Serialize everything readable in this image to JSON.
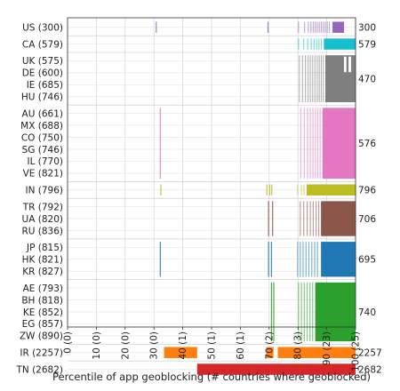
{
  "chart_data": {
    "type": "bar",
    "xlabel": "Percentile of app geoblocking (# countries where geoblocked)",
    "ylabel": "",
    "xlim": [
      0,
      100
    ],
    "x_ticks": [
      {
        "value": 0,
        "label": "0 (0)"
      },
      {
        "value": 10,
        "label": "10 (0)"
      },
      {
        "value": 20,
        "label": "20 (0)"
      },
      {
        "value": 30,
        "label": "30 (0)"
      },
      {
        "value": 40,
        "label": "40 (1)"
      },
      {
        "value": 50,
        "label": "50 (1)"
      },
      {
        "value": 60,
        "label": "60 (1)"
      },
      {
        "value": 70,
        "label": "70 (2)"
      },
      {
        "value": 80,
        "label": "80 (3)"
      },
      {
        "value": 90,
        "label": "90 (23)"
      },
      {
        "value": 100,
        "label": "100 (25)"
      }
    ],
    "grid": true,
    "groups": [
      {
        "rows": [
          "US (300)"
        ],
        "total": "300",
        "color": "#9467bd",
        "segments": [
          [
            92,
            96
          ]
        ],
        "ticks": [
          30.8,
          69.6,
          80.2,
          82.3,
          83.6,
          84.5,
          85.3,
          86.0,
          86.7,
          87.4,
          88.1,
          88.8,
          89.5,
          90.2,
          90.9
        ]
      },
      {
        "rows": [
          "CA (579)"
        ],
        "total": "579",
        "color": "#17becf",
        "segments": [
          [
            89,
            100
          ]
        ],
        "ticks": [
          80.2,
          82.0,
          83.4,
          84.6,
          85.6,
          86.5,
          87.3,
          88.1
        ]
      },
      {
        "rows": [
          "UK (575)",
          "DE (600)",
          "IE (685)",
          "HU (746)"
        ],
        "total": "470",
        "color": "#7f7f7f",
        "segments": [
          [
            89.5,
            100
          ]
        ],
        "ticks": [
          80.5,
          81.6,
          82.6,
          83.5,
          84.3,
          85.1,
          85.9,
          86.7,
          87.4,
          88.1,
          88.8
        ],
        "notches": [
          96.4,
          98.0
        ]
      },
      {
        "rows": [
          "AU (661)",
          "MX (688)",
          "CO (750)",
          "SG (746)",
          "IL (770)",
          "VE (821)"
        ],
        "total": "576",
        "color": "#e377c2",
        "segments": [
          [
            88.5,
            100
          ]
        ],
        "ticks": [
          32.2,
          81.0,
          82.2,
          83.3,
          84.3,
          85.2,
          86.1,
          86.9,
          87.7
        ]
      },
      {
        "rows": [
          "IN (796)"
        ],
        "total": "796",
        "color": "#bcbd22",
        "segments": [
          [
            83,
            100
          ]
        ],
        "ticks": [
          32.4,
          69.2,
          70.2,
          70.9,
          79.9,
          81.2,
          82.1
        ]
      },
      {
        "rows": [
          "TR (792)",
          "UA (820)",
          "RU (836)"
        ],
        "total": "706",
        "color": "#8c564b",
        "segments": [
          [
            88,
            100
          ]
        ],
        "ticks": [
          69.8,
          71.2,
          80.8,
          82.0,
          83.2,
          84.3,
          85.3,
          86.3,
          87.2
        ]
      },
      {
        "rows": [
          "JP (815)",
          "HK (821)",
          "KR (827)"
        ],
        "total": "695",
        "color": "#1f77b4",
        "segments": [
          [
            88,
            100
          ]
        ],
        "ticks": [
          32.2,
          69.8,
          70.8,
          79.9,
          80.8,
          81.8,
          82.8,
          83.8,
          84.8,
          85.8,
          86.8
        ]
      },
      {
        "rows": [
          "AE (793)",
          "BH (818)",
          "KE (852)",
          "EG (857)",
          "ZW (890)"
        ],
        "total": "740",
        "color": "#2ca02c",
        "segments": [
          [
            86,
            100
          ]
        ],
        "ticks": [
          70.8,
          71.6,
          80.2,
          81.2,
          82.2,
          83.2,
          84.2,
          85.1
        ]
      },
      {
        "rows": [
          "IR (2257)"
        ],
        "total": "2257",
        "color": "#ff7f0e",
        "segments": [
          [
            33.5,
            45
          ],
          [
            69,
            71.5
          ],
          [
            73,
            100
          ]
        ],
        "ticks": [
          70.3,
          71.0
        ]
      },
      {
        "rows": [
          "TN (2682)"
        ],
        "total": "2682",
        "color": "#d62728",
        "segments": [
          [
            45,
            100
          ]
        ],
        "ticks": []
      }
    ]
  }
}
